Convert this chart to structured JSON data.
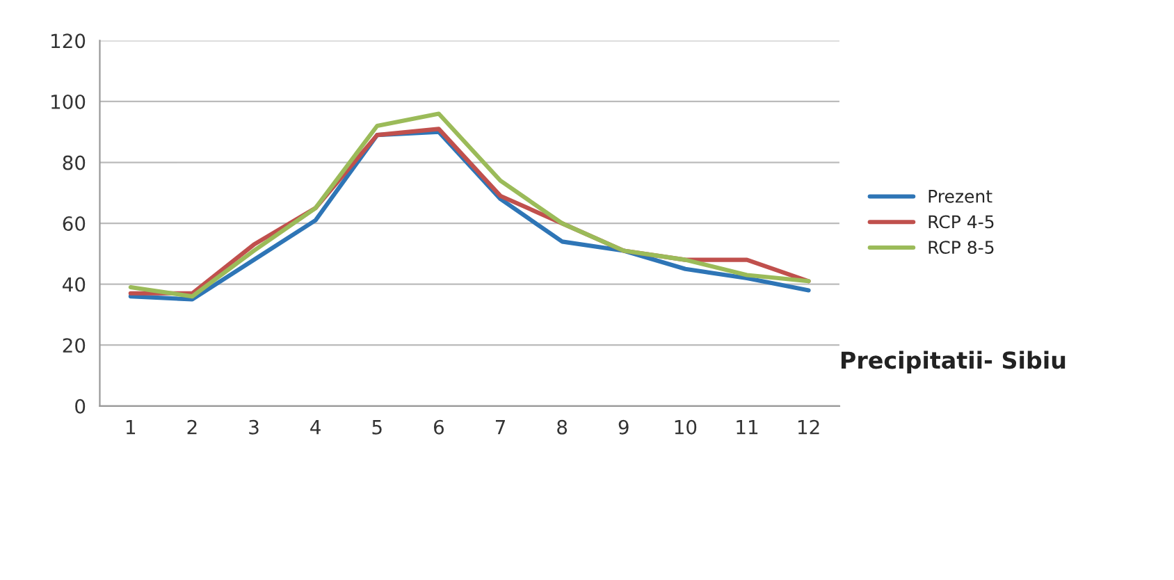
{
  "chart_data": {
    "type": "line",
    "title": "Precipitatii- Sibiu",
    "categories": [
      "1",
      "2",
      "3",
      "4",
      "5",
      "6",
      "7",
      "8",
      "9",
      "10",
      "11",
      "12"
    ],
    "series": [
      {
        "name": "Prezent",
        "color": "#2e75b6",
        "values": [
          36,
          35,
          48,
          61,
          89,
          90,
          68,
          54,
          51,
          45,
          42,
          38
        ]
      },
      {
        "name": "RCP 4-5",
        "color": "#c0504d",
        "values": [
          37,
          37,
          53,
          65,
          89,
          91,
          69,
          60,
          51,
          48,
          48,
          41
        ]
      },
      {
        "name": "RCP 8-5",
        "color": "#9bbb59",
        "values": [
          39,
          36,
          51,
          65,
          92,
          96,
          74,
          60,
          51,
          48,
          43,
          41
        ]
      }
    ],
    "ylim": [
      0,
      120
    ],
    "yticks": [
      0,
      20,
      40,
      60,
      80,
      100,
      120
    ],
    "grid": "y",
    "legend": "right",
    "marker": "none",
    "line_style": "solid"
  }
}
